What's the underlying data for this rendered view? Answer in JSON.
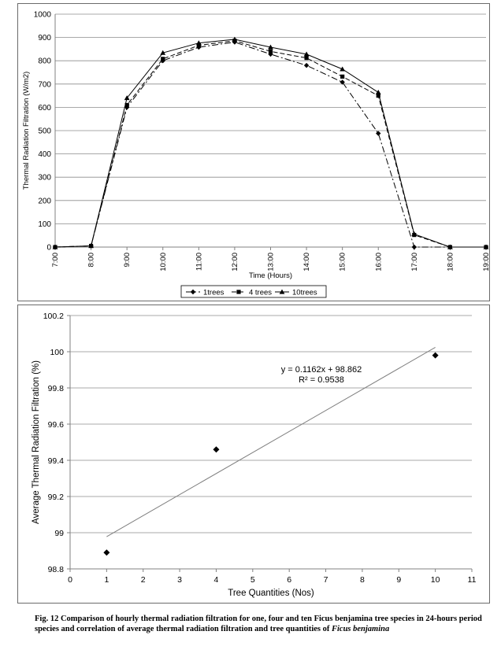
{
  "chart_data": [
    {
      "type": "line",
      "title": "",
      "xlabel": "Time (Hours)",
      "ylabel": "Thermal Radiation Filtration  (W/m2)",
      "categories": [
        "7:00",
        "8:00",
        "9:00",
        "10:00",
        "11:00",
        "12:00",
        "13:00",
        "14:00",
        "15:00",
        "16:00",
        "17:00",
        "18:00",
        "19:00"
      ],
      "ylim": [
        0,
        1000
      ],
      "yticks": [
        "0",
        "100",
        "200",
        "300",
        "400",
        "500",
        "600",
        "700",
        "800",
        "900",
        "1000"
      ],
      "grid": "horizontal",
      "legend_position": "bottom",
      "series": [
        {
          "name": "1trees",
          "values": [
            0,
            5,
            600,
            800,
            858,
            880,
            828,
            780,
            708,
            488,
            0,
            0,
            0
          ],
          "dash": "8 3 2 3",
          "marker": "diamond"
        },
        {
          "name": "4 trees",
          "values": [
            0,
            5,
            610,
            808,
            866,
            886,
            840,
            812,
            732,
            650,
            52,
            0,
            0
          ],
          "dash": "6 3",
          "marker": "square"
        },
        {
          "name": "10trees",
          "values": [
            0,
            5,
            640,
            834,
            876,
            892,
            858,
            828,
            764,
            664,
            56,
            0,
            0
          ],
          "dash": "",
          "marker": "triangle"
        }
      ]
    },
    {
      "type": "scatter",
      "title": "",
      "xlabel": "Tree Quantities (Nos)",
      "ylabel": "Average Thermal Radiation Filtration (%)",
      "xlim": [
        0,
        11
      ],
      "ylim": [
        98.8,
        100.2
      ],
      "xticks": [
        "0",
        "1",
        "2",
        "3",
        "4",
        "5",
        "6",
        "7",
        "8",
        "9",
        "10",
        "11"
      ],
      "yticks": [
        "98.8",
        "99",
        "99.2",
        "99.4",
        "99.6",
        "99.8",
        "100",
        "100.2"
      ],
      "grid": "horizontal",
      "points": [
        {
          "x": 1,
          "y": 98.89
        },
        {
          "x": 4,
          "y": 99.46
        },
        {
          "x": 10,
          "y": 99.98
        }
      ],
      "trendline": {
        "slope": 0.1162,
        "intercept": 98.862,
        "x_range": [
          1,
          10
        ]
      },
      "equation_label": "y = 0.1162x + 98.862",
      "r2_label": "R² = 0.9538"
    }
  ],
  "caption": {
    "text": "Fig. 12 Comparison of hourly thermal radiation filtration for one, four and ten Ficus benjamina tree species in 24-hours period species and correlation of average thermal radiation filtration and tree quantities of ",
    "italic_tail": "Ficus benjamina"
  }
}
